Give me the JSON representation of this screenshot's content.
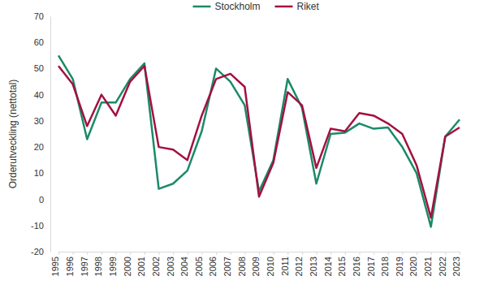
{
  "chart_data": {
    "type": "line",
    "y_label": "Orderutveckling  (nettotal)",
    "categories": [
      "1995",
      "1996",
      "1997",
      "1998",
      "1999",
      "2000",
      "2001",
      "2002",
      "2003",
      "2004",
      "2005",
      "2006",
      "2007",
      "2008",
      "2009",
      "2010",
      "2011",
      "2012",
      "2013",
      "2014",
      "2015",
      "2016",
      "2017",
      "2018",
      "2019",
      "2020",
      "2021",
      "2022",
      "2023"
    ],
    "series": [
      {
        "name": "Stockholm",
        "color": "#1a8a6a",
        "values": [
          55,
          46,
          23,
          37,
          37,
          46,
          52,
          4,
          6,
          11,
          26,
          50,
          45,
          36,
          3,
          15,
          46,
          35,
          6,
          25,
          25.5,
          29,
          27,
          27.5,
          20,
          10,
          -10.5,
          24,
          30.5
        ]
      },
      {
        "name": "Riket",
        "color": "#a3113f",
        "values": [
          51,
          44,
          28,
          40,
          32,
          45,
          51,
          20,
          19,
          15,
          32,
          46,
          48,
          43,
          1,
          14,
          41,
          36,
          12,
          27,
          26,
          33,
          32,
          29,
          25,
          13,
          -7,
          24,
          27.5
        ]
      }
    ],
    "ylim": [
      -20,
      70
    ],
    "yticks": [
      -20,
      -10,
      0,
      10,
      20,
      30,
      40,
      50,
      60,
      70
    ],
    "grid": false,
    "legend": "top"
  }
}
